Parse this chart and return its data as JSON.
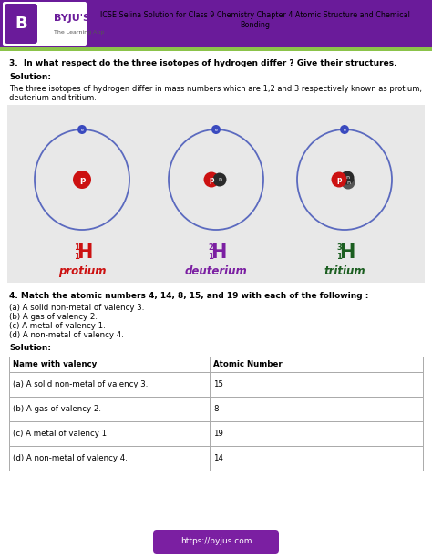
{
  "title": "ICSE Selina Solution for Class 9 Chemistry Chapter 4 Atomic Structure and Chemical\nBonding",
  "header_bg": "#6a1b9a",
  "header_green": "#8bc34a",
  "question_text": "3.  In what respect do the three isotopes of hydrogen differ ? Give their structures.",
  "solution_label": "Solution:",
  "body_text": "The three isotopes of hydrogen differ in mass numbers which are 1,2 and 3 respectively known as protium,\ndeuterium and tritium.",
  "diagram_bg": "#e8e8e8",
  "orbit_color": "#5b6abf",
  "electron_color": "#3a4abf",
  "proton_color": "#cc1111",
  "neutron_color": "#2a2a2a",
  "neutron2_color": "#555555",
  "isotopes": [
    {
      "name": "protium",
      "name_color": "#cc1111",
      "symbol": "H",
      "symbol_color": "#cc1111",
      "mass": "1",
      "atomic": "1",
      "protons": 1,
      "neutrons": 0
    },
    {
      "name": "deuterium",
      "name_color": "#7b1fa2",
      "symbol": "H",
      "symbol_color": "#7b1fa2",
      "mass": "2",
      "atomic": "1",
      "protons": 1,
      "neutrons": 1
    },
    {
      "name": "tritium",
      "name_color": "#1b5e20",
      "symbol": "H",
      "symbol_color": "#1b5e20",
      "mass": "3",
      "atomic": "1",
      "protons": 1,
      "neutrons": 2
    }
  ],
  "q4_text": "4. Match the atomic numbers 4, 14, 8, 15, and 19 with each of the following :",
  "q4_parts": [
    "(a) A solid non-metal of valency 3.",
    "(b) A gas of valency 2.",
    "(c) A metal of valency 1.",
    "(d) A non-metal of valency 4."
  ],
  "table_header": [
    "Name with valency",
    "Atomic Number"
  ],
  "table_rows": [
    [
      "(a) A solid non-metal of valency 3.",
      "15"
    ],
    [
      "(b) A gas of valency 2.",
      "8"
    ],
    [
      "(c) A metal of valency 1.",
      "19"
    ],
    [
      "(d) A non-metal of valency 4.",
      "14"
    ]
  ],
  "footer_text": "https://byjus.com",
  "footer_bg": "#7b1fa2",
  "footer_text_color": "#ffffff",
  "fig_w": 4.74,
  "fig_h": 6.13,
  "dpi": 100
}
